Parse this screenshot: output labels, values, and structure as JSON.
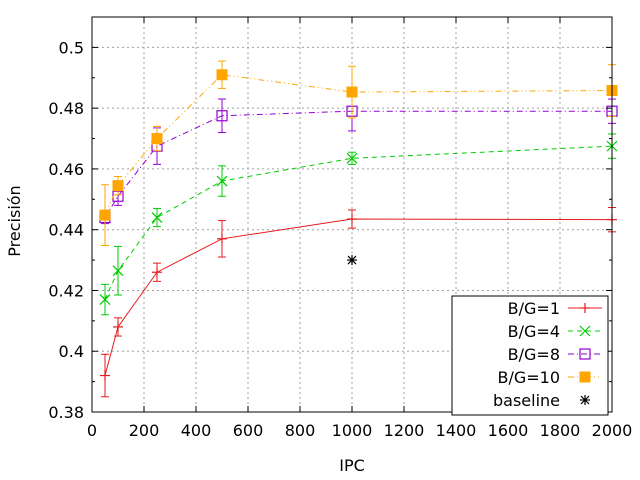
{
  "chart_data": {
    "type": "line",
    "title": "",
    "xlabel": "IPC",
    "ylabel": "Precisión",
    "xlim": [
      0,
      2000
    ],
    "ylim": [
      0.38,
      0.51
    ],
    "xticks": [
      "0",
      "200",
      "400",
      "600",
      "800",
      "1000",
      "1200",
      "1400",
      "1600",
      "1800",
      "2000"
    ],
    "yticks": [
      "0.38",
      "0.4",
      "0.42",
      "0.44",
      "0.46",
      "0.48",
      "0.5"
    ],
    "grid": true,
    "legend_position": "bottom-right",
    "series": [
      {
        "name": "B/G=1",
        "color": "#e41a1c",
        "marker": "plus",
        "line": "solid",
        "x": [
          50,
          100,
          250,
          500,
          1000,
          2000
        ],
        "y": [
          0.392,
          0.408,
          0.426,
          0.437,
          0.4435,
          0.4433
        ],
        "err": [
          0.007,
          0.003,
          0.003,
          0.006,
          0.003,
          0.004
        ]
      },
      {
        "name": "B/G=4",
        "color": "#00cc00",
        "marker": "x",
        "line": "dashed",
        "x": [
          50,
          100,
          250,
          500,
          1000,
          2000
        ],
        "y": [
          0.417,
          0.4265,
          0.444,
          0.456,
          0.4635,
          0.4675
        ],
        "err": [
          0.005,
          0.008,
          0.003,
          0.005,
          0.002,
          0.004
        ]
      },
      {
        "name": "B/G=8",
        "color": "#9400d3",
        "marker": "square-open",
        "line": "dashdot",
        "x": [
          50,
          100,
          250,
          500,
          1000,
          2000
        ],
        "y": [
          0.444,
          0.451,
          0.4675,
          0.4775,
          0.479,
          0.479
        ],
        "err": [
          0.002,
          0.003,
          0.006,
          0.0055,
          0.0065,
          0.004
        ]
      },
      {
        "name": "B/G=10",
        "color": "#ffa500",
        "marker": "square-filled",
        "line": "dashdotdot",
        "x": [
          50,
          100,
          250,
          500,
          1000,
          2000
        ],
        "y": [
          0.4448,
          0.4545,
          0.47,
          0.491,
          0.4853,
          0.4858
        ],
        "err": [
          0.01,
          0.003,
          0.004,
          0.0045,
          0.0085,
          0.0085
        ]
      },
      {
        "name": "baseline",
        "color": "#000000",
        "marker": "star",
        "line": "none",
        "x": [
          1000
        ],
        "y": [
          0.43
        ],
        "err": []
      }
    ]
  }
}
